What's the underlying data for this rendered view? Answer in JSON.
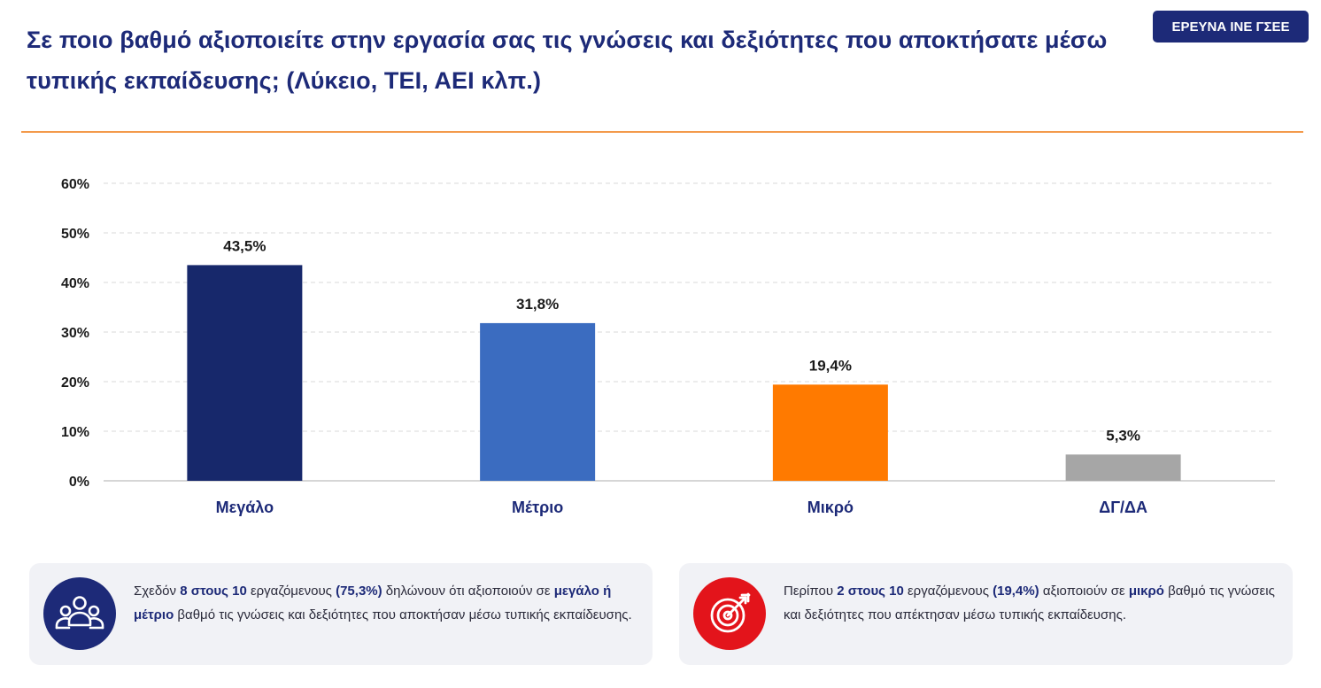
{
  "title": "Σε ποιο βαθμό αξιοποιείτε στην εργασία σας τις γνώσεις και δεξιότητες που αποκτήσατε μέσω τυπικής εκπαίδευσης; (Λύκειο, ΤΕΙ, ΑΕΙ κλπ.)",
  "badge": "ΕΡΕΥΝΑ ΙΝΕ ΓΣΕΕ",
  "colors": {
    "navy": "#1d2a78",
    "orange_rule": "#f39a4b",
    "card_bg": "#f1f2f6",
    "icon_left_bg": "#1d2a78",
    "icon_right_bg": "#e3141b"
  },
  "chart_data": {
    "type": "bar",
    "categories": [
      "Μεγάλο",
      "Μέτριο",
      "Μικρό",
      "ΔΓ/ΔΑ"
    ],
    "values": [
      43.5,
      31.8,
      19.4,
      5.3
    ],
    "data_labels": [
      "43,5%",
      "31,8%",
      "19,4%",
      "5,3%"
    ],
    "bar_colors": [
      "#17286b",
      "#3b6cc0",
      "#ff7a00",
      "#a6a6a6"
    ],
    "ylim": [
      0,
      60
    ],
    "yticks": [
      "0%",
      "10%",
      "20%",
      "30%",
      "40%",
      "50%",
      "60%"
    ],
    "ytick_values": [
      0,
      10,
      20,
      30,
      40,
      50,
      60
    ],
    "grid": true,
    "title": "",
    "xlabel": "",
    "ylabel": ""
  },
  "cards": [
    {
      "icon": "people-group-icon",
      "segments": [
        {
          "t": "Σχεδόν ",
          "b": false
        },
        {
          "t": "8 στους 10",
          "b": true
        },
        {
          "t": " εργαζόμενους ",
          "b": false
        },
        {
          "t": "(75,3%)",
          "b": true
        },
        {
          "t": " δηλώνουν ότι αξιοποιούν σε ",
          "b": false
        },
        {
          "t": "μεγάλο ή μέτριο",
          "b": true
        },
        {
          "t": " βαθμό τις γνώσεις και δεξιότητες που αποκτήσαν μέσω τυπικής εκπαίδευσης.",
          "b": false
        }
      ]
    },
    {
      "icon": "target-arrow-icon",
      "segments": [
        {
          "t": "Περίπου ",
          "b": false
        },
        {
          "t": "2 στους 10",
          "b": true
        },
        {
          "t": " εργαζόμενους ",
          "b": false
        },
        {
          "t": "(19,4%)",
          "b": true
        },
        {
          "t": " αξιοποιούν σε ",
          "b": false
        },
        {
          "t": "μικρό",
          "b": true
        },
        {
          "t": " βαθμό τις γνώσεις και δεξιότητες που απέκτησαν μέσω τυπικής εκπαίδευσης.",
          "b": false
        }
      ]
    }
  ]
}
